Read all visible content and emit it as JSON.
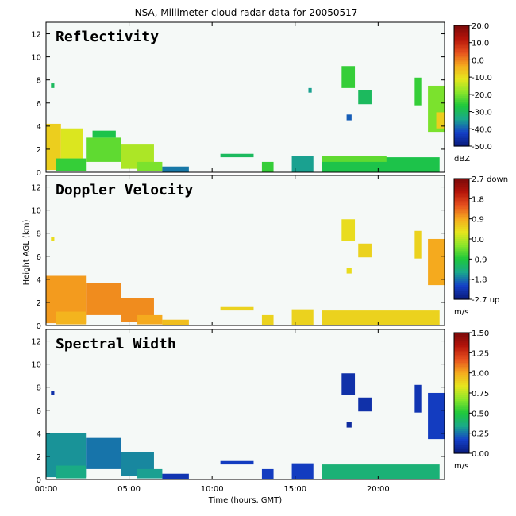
{
  "title": "NSA, Millimeter cloud radar data for 20050517",
  "x_axis": {
    "label": "Time (hours, GMT)",
    "ticks": [
      "00:00",
      "05:00",
      "10:00",
      "15:00",
      "20:00"
    ],
    "tick_values": [
      0,
      5,
      10,
      15,
      20
    ],
    "range": [
      0,
      24
    ]
  },
  "y_axis": {
    "label": "Height AGL (km)",
    "ticks": [
      "0",
      "2",
      "4",
      "6",
      "8",
      "10",
      "12"
    ],
    "tick_values": [
      0,
      2,
      4,
      6,
      8,
      10,
      12
    ],
    "range": [
      0,
      13
    ]
  },
  "colors": {
    "panel_background": "#f5f9f7",
    "frame": "#000000",
    "colormap": [
      "#0a1a7a",
      "#1440c8",
      "#1aa88c",
      "#1ec83c",
      "#8ae62a",
      "#e6e61e",
      "#f5aa1e",
      "#e6501e",
      "#b4140a",
      "#7a0a0a"
    ]
  },
  "chart_data": [
    {
      "type": "heatmap",
      "title": "Reflectivity",
      "colorbar": {
        "ticks": [
          "20.0",
          "10.0",
          "0.0",
          "-10.0",
          "-20.0",
          "-30.0",
          "-40.0",
          "-50.0"
        ],
        "unit": "dBZ",
        "range": [
          -50,
          20
        ]
      },
      "regions": [
        {
          "t": [
            0,
            0.9
          ],
          "h": [
            0.2,
            4.2
          ],
          "v": -8
        },
        {
          "t": [
            0.9,
            2.2
          ],
          "h": [
            1.2,
            3.8
          ],
          "v": -12
        },
        {
          "t": [
            0.6,
            2.4
          ],
          "h": [
            0.1,
            1.2
          ],
          "v": -25
        },
        {
          "t": [
            2.4,
            4.5
          ],
          "h": [
            0.9,
            3.0
          ],
          "v": -22
        },
        {
          "t": [
            2.8,
            4.2
          ],
          "h": [
            3.0,
            3.6
          ],
          "v": -28
        },
        {
          "t": [
            4.5,
            6.5
          ],
          "h": [
            0.3,
            2.4
          ],
          "v": -16
        },
        {
          "t": [
            5.5,
            7.0
          ],
          "h": [
            0.1,
            0.9
          ],
          "v": -20
        },
        {
          "t": [
            7.0,
            8.6
          ],
          "h": [
            0.0,
            0.5
          ],
          "v": -38
        },
        {
          "t": [
            10.5,
            12.5
          ],
          "h": [
            1.3,
            1.6
          ],
          "v": -30
        },
        {
          "t": [
            13.0,
            13.7
          ],
          "h": [
            0.0,
            0.9
          ],
          "v": -25
        },
        {
          "t": [
            14.8,
            16.1
          ],
          "h": [
            0.0,
            1.4
          ],
          "v": -35
        },
        {
          "t": [
            16.6,
            23.7
          ],
          "h": [
            0.0,
            1.3
          ],
          "v": -28
        },
        {
          "t": [
            16.6,
            20.5
          ],
          "h": [
            0.9,
            1.4
          ],
          "v": -22
        },
        {
          "t": [
            17.8,
            18.6
          ],
          "h": [
            7.3,
            9.2
          ],
          "v": -25
        },
        {
          "t": [
            18.8,
            19.6
          ],
          "h": [
            5.9,
            7.1
          ],
          "v": -30
        },
        {
          "t": [
            18.1,
            18.4
          ],
          "h": [
            4.5,
            5.0
          ],
          "v": -40
        },
        {
          "t": [
            15.8,
            16.0
          ],
          "h": [
            6.9,
            7.3
          ],
          "v": -35
        },
        {
          "t": [
            22.2,
            22.6
          ],
          "h": [
            5.8,
            8.2
          ],
          "v": -25
        },
        {
          "t": [
            23.0,
            24.0
          ],
          "h": [
            3.5,
            7.5
          ],
          "v": -20
        },
        {
          "t": [
            23.5,
            24.0
          ],
          "h": [
            3.8,
            5.2
          ],
          "v": -8
        },
        {
          "t": [
            0.3,
            0.5
          ],
          "h": [
            7.3,
            7.7
          ],
          "v": -30
        }
      ]
    },
    {
      "type": "heatmap",
      "title": "Doppler Velocity",
      "colorbar": {
        "ticks": [
          "2.7 down",
          "1.8",
          "0.9",
          "0.0",
          "-0.9",
          "-1.8",
          "-2.7 up"
        ],
        "unit": "m/s",
        "range": [
          -2.7,
          2.7
        ]
      },
      "regions": [
        {
          "t": [
            0,
            2.4
          ],
          "h": [
            0.2,
            4.3
          ],
          "v": 1.0
        },
        {
          "t": [
            0.6,
            2.4
          ],
          "h": [
            0.1,
            1.2
          ],
          "v": 0.8
        },
        {
          "t": [
            2.4,
            4.5
          ],
          "h": [
            0.9,
            3.7
          ],
          "v": 1.1
        },
        {
          "t": [
            4.5,
            6.5
          ],
          "h": [
            0.3,
            2.4
          ],
          "v": 1.1
        },
        {
          "t": [
            5.5,
            7.0
          ],
          "h": [
            0.1,
            0.9
          ],
          "v": 0.9
        },
        {
          "t": [
            7.0,
            8.6
          ],
          "h": [
            0.0,
            0.5
          ],
          "v": 0.7
        },
        {
          "t": [
            10.5,
            12.5
          ],
          "h": [
            1.3,
            1.6
          ],
          "v": 0.5
        },
        {
          "t": [
            13.0,
            13.7
          ],
          "h": [
            0.0,
            0.9
          ],
          "v": 0.5
        },
        {
          "t": [
            14.8,
            16.1
          ],
          "h": [
            0.0,
            1.4
          ],
          "v": 0.5
        },
        {
          "t": [
            16.6,
            23.7
          ],
          "h": [
            0.0,
            1.3
          ],
          "v": 0.5
        },
        {
          "t": [
            17.8,
            18.6
          ],
          "h": [
            7.3,
            9.2
          ],
          "v": 0.4
        },
        {
          "t": [
            18.8,
            19.6
          ],
          "h": [
            5.9,
            7.1
          ],
          "v": 0.5
        },
        {
          "t": [
            18.1,
            18.4
          ],
          "h": [
            4.5,
            5.0
          ],
          "v": 0.4
        },
        {
          "t": [
            22.2,
            22.6
          ],
          "h": [
            5.8,
            8.2
          ],
          "v": 0.5
        },
        {
          "t": [
            23.0,
            24.0
          ],
          "h": [
            3.5,
            7.5
          ],
          "v": 0.9
        },
        {
          "t": [
            0.3,
            0.5
          ],
          "h": [
            7.3,
            7.7
          ],
          "v": 0.4
        }
      ]
    },
    {
      "type": "heatmap",
      "title": "Spectral Width",
      "colorbar": {
        "ticks": [
          "1.50",
          "1.25",
          "1.00",
          "0.75",
          "0.50",
          "0.25",
          "0.00"
        ],
        "unit": "m/s",
        "range": [
          0,
          1.5
        ]
      },
      "regions": [
        {
          "t": [
            0,
            2.4
          ],
          "h": [
            0.2,
            4.0
          ],
          "v": 0.3
        },
        {
          "t": [
            0.6,
            2.4
          ],
          "h": [
            0.1,
            1.2
          ],
          "v": 0.35
        },
        {
          "t": [
            2.4,
            4.5
          ],
          "h": [
            0.9,
            3.6
          ],
          "v": 0.25
        },
        {
          "t": [
            4.5,
            6.5
          ],
          "h": [
            0.3,
            2.4
          ],
          "v": 0.28
        },
        {
          "t": [
            5.5,
            7.0
          ],
          "h": [
            0.1,
            0.9
          ],
          "v": 0.32
        },
        {
          "t": [
            7.0,
            8.6
          ],
          "h": [
            0.0,
            0.5
          ],
          "v": 0.12
        },
        {
          "t": [
            10.5,
            12.5
          ],
          "h": [
            1.3,
            1.6
          ],
          "v": 0.15
        },
        {
          "t": [
            13.0,
            13.7
          ],
          "h": [
            0.0,
            0.9
          ],
          "v": 0.15
        },
        {
          "t": [
            14.8,
            16.1
          ],
          "h": [
            0.0,
            1.4
          ],
          "v": 0.15
        },
        {
          "t": [
            16.6,
            23.7
          ],
          "h": [
            0.0,
            1.3
          ],
          "v": 0.38
        },
        {
          "t": [
            17.8,
            18.6
          ],
          "h": [
            7.3,
            9.2
          ],
          "v": 0.1
        },
        {
          "t": [
            18.8,
            19.6
          ],
          "h": [
            5.9,
            7.1
          ],
          "v": 0.1
        },
        {
          "t": [
            18.1,
            18.4
          ],
          "h": [
            4.5,
            5.0
          ],
          "v": 0.08
        },
        {
          "t": [
            22.2,
            22.6
          ],
          "h": [
            5.8,
            8.2
          ],
          "v": 0.12
        },
        {
          "t": [
            23.0,
            24.0
          ],
          "h": [
            3.5,
            7.5
          ],
          "v": 0.15
        },
        {
          "t": [
            0.3,
            0.5
          ],
          "h": [
            7.3,
            7.7
          ],
          "v": 0.1
        }
      ]
    }
  ]
}
